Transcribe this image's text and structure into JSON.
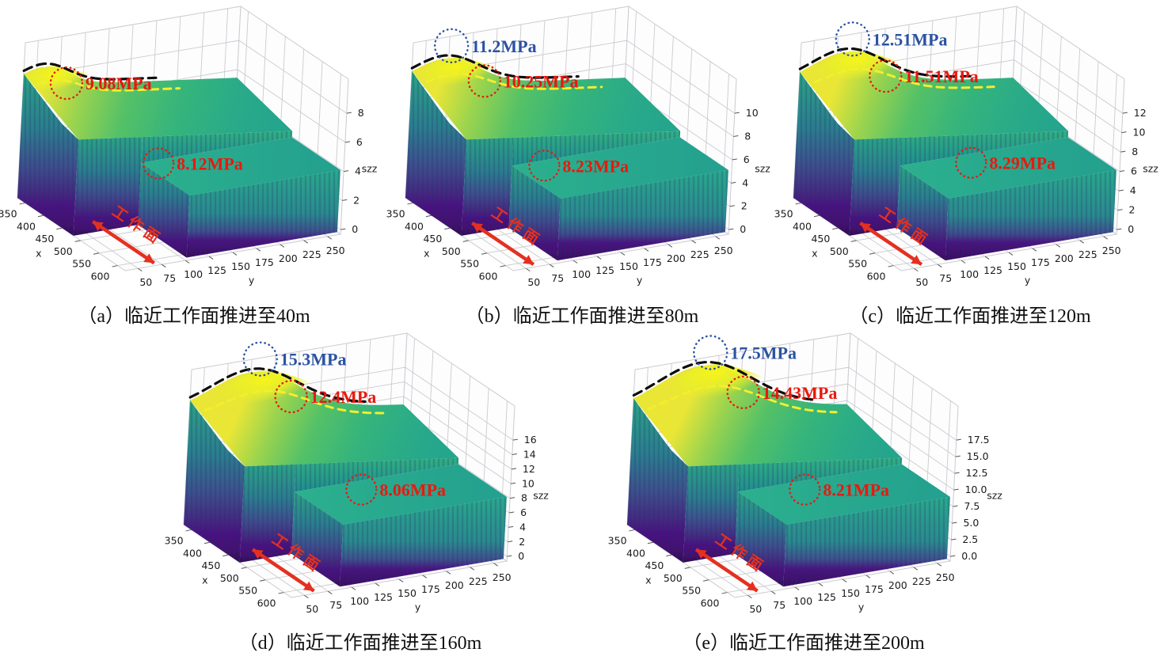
{
  "figure": {
    "working_face_label": "工作面",
    "colors": {
      "annotation_red": "#e8190e",
      "annotation_blue": "#2b52a2",
      "crest_line": "#0d0d0d",
      "yellow_line": "#f2ee2e",
      "arrow_red": "#e5301f",
      "grid": "#cbcbd0",
      "tick_text": "#1a1a1a",
      "surface_yellow": "#f0e51f",
      "surface_green": "#3fbc73",
      "surface_teal": "#21a585",
      "surface_purple": "#46107c"
    },
    "axes": {
      "x_label": "x",
      "y_label": "y",
      "z_label": "szz",
      "x_ticks": [
        "350",
        "400",
        "450",
        "500",
        "550",
        "600"
      ],
      "y_ticks": [
        "50",
        "75",
        "100",
        "125",
        "150",
        "175",
        "200",
        "225",
        "250"
      ]
    }
  },
  "chart_data": [
    {
      "id": "a",
      "type": "3d-surface",
      "caption": "（a）临近工作面推进至40m",
      "advance_m": 40,
      "x_range": [
        350,
        600
      ],
      "y_range": [
        50,
        250
      ],
      "z_ticks": [
        "0",
        "2",
        "4",
        "6",
        "8"
      ],
      "annotations": [
        {
          "text": "9.08MPa",
          "kind": "yellow-line",
          "color": "#e8190e"
        },
        {
          "text": "8.12MPa",
          "kind": "step",
          "color": "#e8190e"
        }
      ]
    },
    {
      "id": "b",
      "type": "3d-surface",
      "caption": "（b）临近工作面推进至80m",
      "advance_m": 80,
      "x_range": [
        350,
        600
      ],
      "y_range": [
        50,
        250
      ],
      "z_ticks": [
        "0",
        "2",
        "4",
        "6",
        "8",
        "10"
      ],
      "annotations": [
        {
          "text": "11.2MPa",
          "kind": "crest",
          "color": "#2b52a2"
        },
        {
          "text": "10.25MPa",
          "kind": "yellow-line",
          "color": "#e8190e"
        },
        {
          "text": "8.23MPa",
          "kind": "step",
          "color": "#e8190e"
        }
      ]
    },
    {
      "id": "c",
      "type": "3d-surface",
      "caption": "（c）临近工作面推进至120m",
      "advance_m": 120,
      "x_range": [
        350,
        600
      ],
      "y_range": [
        50,
        250
      ],
      "z_ticks": [
        "0",
        "2",
        "4",
        "6",
        "8",
        "10",
        "12"
      ],
      "annotations": [
        {
          "text": "12.51MPa",
          "kind": "crest",
          "color": "#2b52a2"
        },
        {
          "text": "11.51MPa",
          "kind": "yellow-line",
          "color": "#e8190e"
        },
        {
          "text": "8.29MPa",
          "kind": "step",
          "color": "#e8190e"
        }
      ]
    },
    {
      "id": "d",
      "type": "3d-surface",
      "caption": "（d）临近工作面推进至160m",
      "advance_m": 160,
      "x_range": [
        350,
        600
      ],
      "y_range": [
        50,
        250
      ],
      "z_ticks": [
        "0",
        "2",
        "4",
        "6",
        "8",
        "10",
        "12",
        "14",
        "16"
      ],
      "annotations": [
        {
          "text": "15.3MPa",
          "kind": "crest",
          "color": "#2b52a2"
        },
        {
          "text": "12.4MPa",
          "kind": "yellow-line",
          "color": "#e8190e"
        },
        {
          "text": "8.06MPa",
          "kind": "step",
          "color": "#e8190e"
        }
      ]
    },
    {
      "id": "e",
      "type": "3d-surface",
      "caption": "（e）临近工作面推进至200m",
      "advance_m": 200,
      "x_range": [
        350,
        600
      ],
      "y_range": [
        50,
        250
      ],
      "z_ticks": [
        "0.0",
        "2.5",
        "5.0",
        "7.5",
        "10.0",
        "12.5",
        "15.0",
        "17.5"
      ],
      "annotations": [
        {
          "text": "17.5MPa",
          "kind": "crest",
          "color": "#2b52a2"
        },
        {
          "text": "14.43MPa",
          "kind": "yellow-line",
          "color": "#e8190e"
        },
        {
          "text": "8.21MPa",
          "kind": "step",
          "color": "#e8190e"
        }
      ]
    }
  ]
}
